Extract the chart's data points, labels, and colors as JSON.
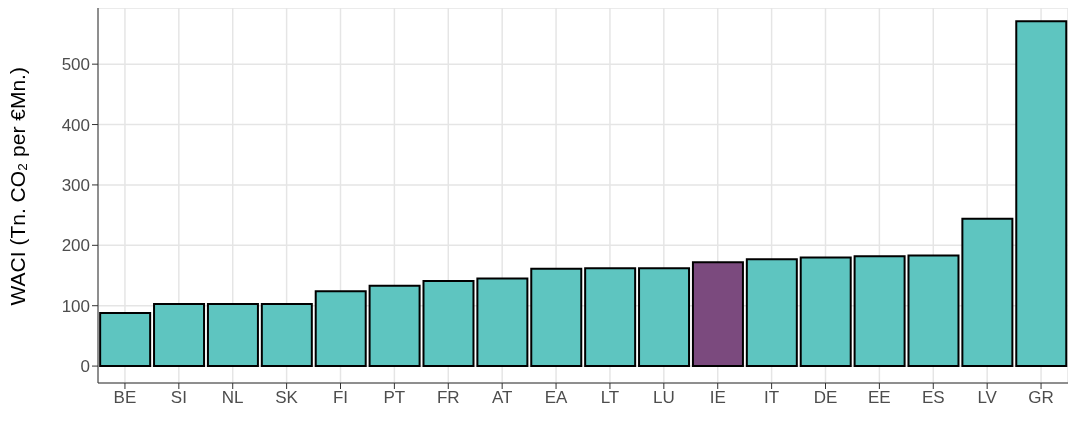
{
  "chart_data": {
    "type": "bar",
    "ylabel": "WACI (Tn. CO₂ per €Mn.)",
    "categories": [
      "BE",
      "SI",
      "NL",
      "SK",
      "FI",
      "PT",
      "FR",
      "AT",
      "EA",
      "LT",
      "LU",
      "IE",
      "IT",
      "DE",
      "EE",
      "ES",
      "LV",
      "GR"
    ],
    "values": [
      88,
      103,
      103,
      103,
      124,
      133,
      141,
      145,
      161,
      162,
      162,
      172,
      177,
      180,
      182,
      183,
      244,
      571
    ],
    "colors": [
      "#5ec5c0",
      "#5ec5c0",
      "#5ec5c0",
      "#5ec5c0",
      "#5ec5c0",
      "#5ec5c0",
      "#5ec5c0",
      "#5ec5c0",
      "#5ec5c0",
      "#5ec5c0",
      "#5ec5c0",
      "#7b4a7e",
      "#5ec5c0",
      "#5ec5c0",
      "#5ec5c0",
      "#5ec5c0",
      "#5ec5c0",
      "#5ec5c0"
    ],
    "ylim": [
      -28,
      593
    ],
    "yticks": [
      0,
      100,
      200,
      300,
      400,
      500
    ],
    "grid": true
  }
}
